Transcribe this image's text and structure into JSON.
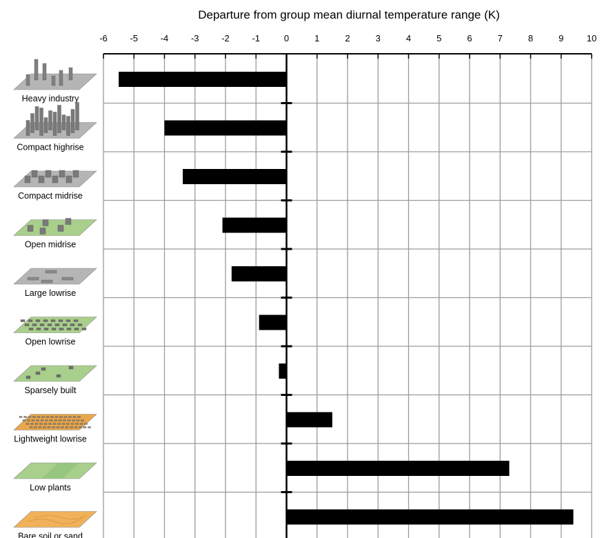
{
  "chart_data": {
    "type": "bar",
    "orientation": "horizontal",
    "title": "",
    "xlabel": "Departure from group mean diurnal temperature range (K)",
    "ylabel": "",
    "xlim": [
      -6,
      10
    ],
    "xticks": [
      "-6",
      "-5",
      "-4",
      "-3",
      "-2",
      "-1",
      "0",
      "1",
      "2",
      "3",
      "4",
      "5",
      "6",
      "7",
      "8",
      "9",
      "10"
    ],
    "categories": [
      "Heavy industry",
      "Compact highrise",
      "Compact midrise",
      "Open midrise",
      "Large lowrise",
      "Open lowrise",
      "Sparsely built",
      "Lightweight lowrise",
      "Low plants",
      "Bare soil or sand"
    ],
    "values": [
      -5.5,
      -4.0,
      -3.4,
      -2.1,
      -1.8,
      -0.9,
      -0.25,
      1.5,
      7.3,
      9.4
    ],
    "grid": true,
    "bar_color": "#000000"
  },
  "category_icons": [
    {
      "category": "Heavy industry",
      "icon": "heavy-industry-icon",
      "ground_color": "#b5b5b5",
      "block_color": "#808080"
    },
    {
      "category": "Compact highrise",
      "icon": "compact-highrise-icon",
      "ground_color": "#b5b5b5",
      "block_color": "#7a7a7a"
    },
    {
      "category": "Compact midrise",
      "icon": "compact-midrise-icon",
      "ground_color": "#b5b5b5",
      "block_color": "#7a7a7a"
    },
    {
      "category": "Open midrise",
      "icon": "open-midrise-icon",
      "ground_color": "#a9cf8c",
      "block_color": "#7a7a7a"
    },
    {
      "category": "Large lowrise",
      "icon": "large-lowrise-icon",
      "ground_color": "#b5b5b5",
      "block_color": "#8a8a8a"
    },
    {
      "category": "Open lowrise",
      "icon": "open-lowrise-icon",
      "ground_color": "#a9cf8c",
      "block_color": "#6e6e6e"
    },
    {
      "category": "Sparsely built",
      "icon": "sparsely-built-icon",
      "ground_color": "#a9cf8c",
      "block_color": "#6e6e6e"
    },
    {
      "category": "Lightweight lowrise",
      "icon": "lightweight-lowrise-icon",
      "ground_color": "#e9a64a",
      "block_color": "#9a8a70"
    },
    {
      "category": "Low plants",
      "icon": "low-plants-icon",
      "ground_color": "#a9cf8c",
      "block_color": "#8cbf7a"
    },
    {
      "category": "Bare soil or sand",
      "icon": "bare-soil-icon",
      "ground_color": "#f0b15a",
      "block_color": "#d9953a"
    }
  ]
}
